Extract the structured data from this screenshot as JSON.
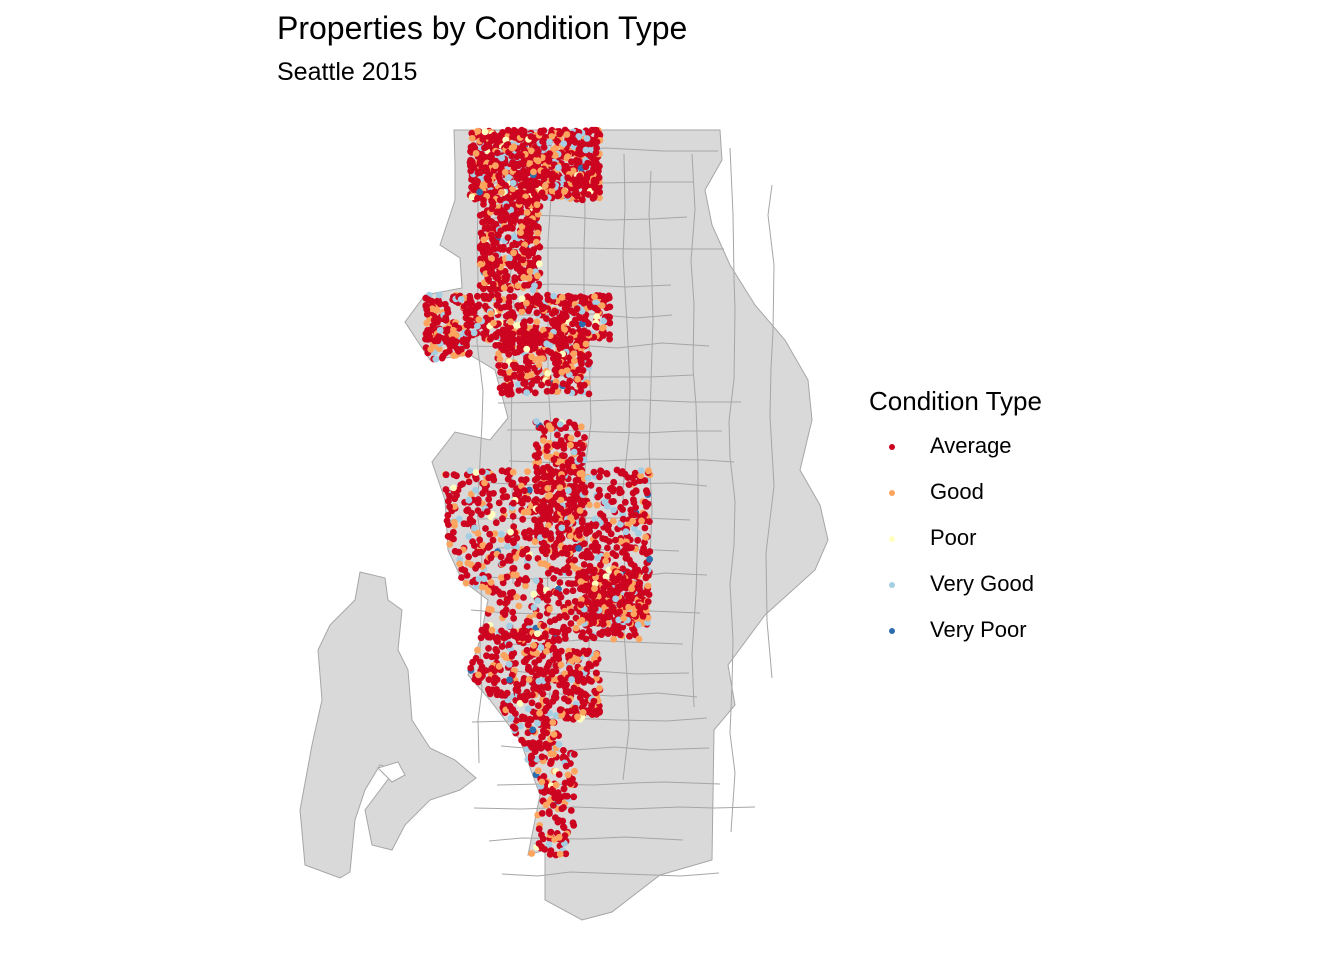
{
  "header": {
    "title": "Properties by Condition Type",
    "subtitle": "Seattle 2015"
  },
  "legend": {
    "title": "Condition Type",
    "items": [
      {
        "label": "Average",
        "color": "#CC0420"
      },
      {
        "label": "Good",
        "color": "#FDA55E"
      },
      {
        "label": "Poor",
        "color": "#FFFFBF"
      },
      {
        "label": "Very Good",
        "color": "#A6CEE3"
      },
      {
        "label": "Very Poor",
        "color": "#2C6DB0"
      }
    ]
  },
  "map_style": {
    "land_fill": "#D9D9D9",
    "boundary_stroke": "#A6A6A6"
  }
}
